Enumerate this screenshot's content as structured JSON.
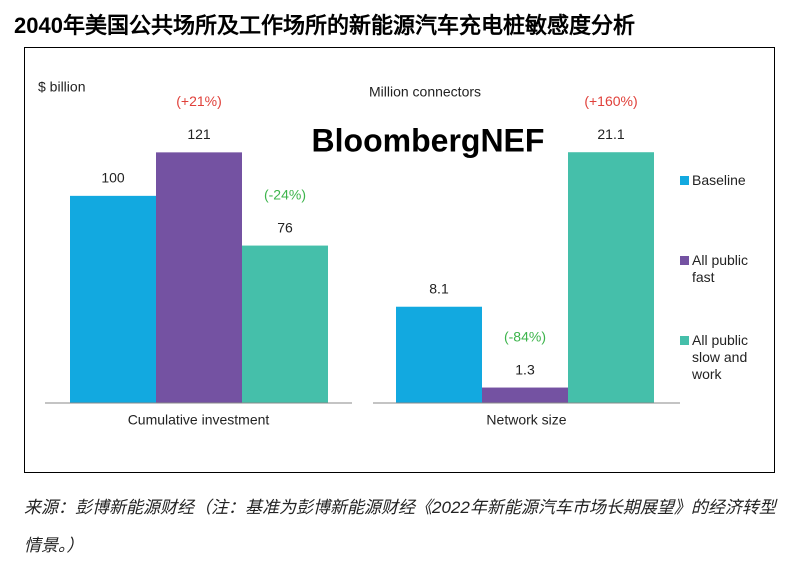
{
  "title": "2040年美国公共场所及工作场所的新能源汽车充电桩敏感度分析",
  "watermark": "BloombergNEF",
  "source": "来源：彭博新能源财经（注：基准为彭博新能源财经《2022年新能源汽车市场长期展望》的经济转型情景。）",
  "legend": [
    {
      "name": "Baseline",
      "color": "#12a9e0"
    },
    {
      "name": "All public fast",
      "color": "#7452a2"
    },
    {
      "name": "All public slow and work",
      "color": "#45bfaa"
    }
  ],
  "chart_data": [
    {
      "type": "bar",
      "unit_label": "$ billion",
      "category": "Cumulative investment",
      "values": [
        100,
        121,
        76
      ],
      "annotations": [
        null,
        "(+21%)",
        "(-24%)"
      ],
      "annotation_colors": [
        null,
        "#e0403a",
        "#3cb44b"
      ],
      "ylim": [
        0,
        140
      ]
    },
    {
      "type": "bar",
      "unit_label": "Million connectors",
      "category": "Network size",
      "values": [
        8.1,
        1.3,
        21.1
      ],
      "annotations": [
        null,
        "(-84%)",
        "(+160%)"
      ],
      "annotation_colors": [
        null,
        "#3cb44b",
        "#e0403a"
      ],
      "ylim": [
        0,
        24.4
      ]
    }
  ]
}
